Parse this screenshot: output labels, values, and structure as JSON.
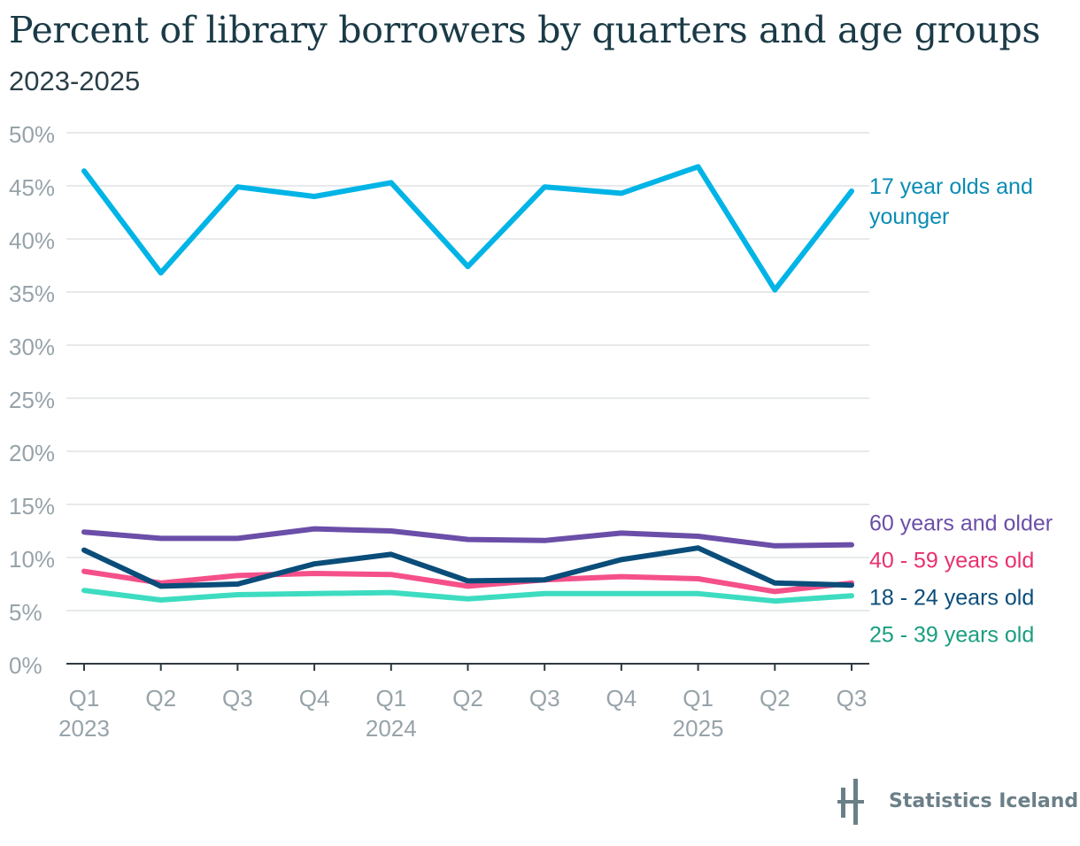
{
  "title": "Percent of library borrowers by quarters and age groups",
  "subtitle": "2023-2025",
  "brand": "Statistics Iceland",
  "chart_data": {
    "type": "line",
    "x": [
      "Q1 2023",
      "Q2 2023",
      "Q3 2023",
      "Q4 2023",
      "Q1 2024",
      "Q2 2024",
      "Q3 2024",
      "Q4 2024",
      "Q1 2025",
      "Q2 2025",
      "Q3 2025"
    ],
    "x_tick_labels": [
      "Q1",
      "Q2",
      "Q3",
      "Q4",
      "Q1",
      "Q2",
      "Q3",
      "Q4",
      "Q1",
      "Q2",
      "Q3"
    ],
    "x_year_labels": [
      {
        "index": 0,
        "label": "2023"
      },
      {
        "index": 4,
        "label": "2024"
      },
      {
        "index": 8,
        "label": "2025"
      }
    ],
    "y_ticks": [
      0,
      5,
      10,
      15,
      20,
      25,
      30,
      35,
      40,
      45,
      50
    ],
    "y_tick_labels": [
      "0%",
      "5%",
      "10%",
      "15%",
      "20%",
      "25%",
      "30%",
      "35%",
      "40%",
      "45%",
      "50%"
    ],
    "ylim": [
      0,
      50
    ],
    "grid": true,
    "legend": "right",
    "series": [
      {
        "name": "17 year olds and younger",
        "label_lines": [
          "17 year olds and",
          "younger"
        ],
        "color": "#00b4e6",
        "label_color": "#0a8cb4",
        "label_y": 45.0,
        "values": [
          46.4,
          36.8,
          44.9,
          44.0,
          45.3,
          37.4,
          44.9,
          44.3,
          46.8,
          35.2,
          44.5
        ]
      },
      {
        "name": "60 years and older",
        "label_lines": [
          "60 years and older"
        ],
        "color": "#6b4ea8",
        "label_color": "#6b4ea8",
        "label_y": 13.3,
        "values": [
          12.4,
          11.8,
          11.8,
          12.7,
          12.5,
          11.7,
          11.6,
          12.3,
          12.0,
          11.1,
          11.2
        ]
      },
      {
        "name": "40 - 59 years old",
        "label_lines": [
          "40 - 59 years old"
        ],
        "color": "#f5508a",
        "label_color": "#e8306e",
        "label_y": 9.8,
        "values": [
          8.7,
          7.6,
          8.3,
          8.5,
          8.4,
          7.3,
          7.9,
          8.2,
          8.0,
          6.8,
          7.6
        ]
      },
      {
        "name": "18 - 24 years old",
        "label_lines": [
          "18 - 24 years old"
        ],
        "color": "#0a4d7a",
        "label_color": "#0a4d7a",
        "label_y": 6.3,
        "values": [
          10.7,
          7.3,
          7.5,
          9.4,
          10.3,
          7.8,
          7.9,
          9.8,
          10.9,
          7.6,
          7.4
        ]
      },
      {
        "name": "25 - 39 years old",
        "label_lines": [
          "25 - 39 years old"
        ],
        "color": "#3ddcc0",
        "label_color": "#1a9e80",
        "label_y": 2.8,
        "values": [
          6.9,
          6.0,
          6.5,
          6.6,
          6.7,
          6.1,
          6.6,
          6.6,
          6.6,
          5.9,
          6.4
        ]
      }
    ]
  }
}
